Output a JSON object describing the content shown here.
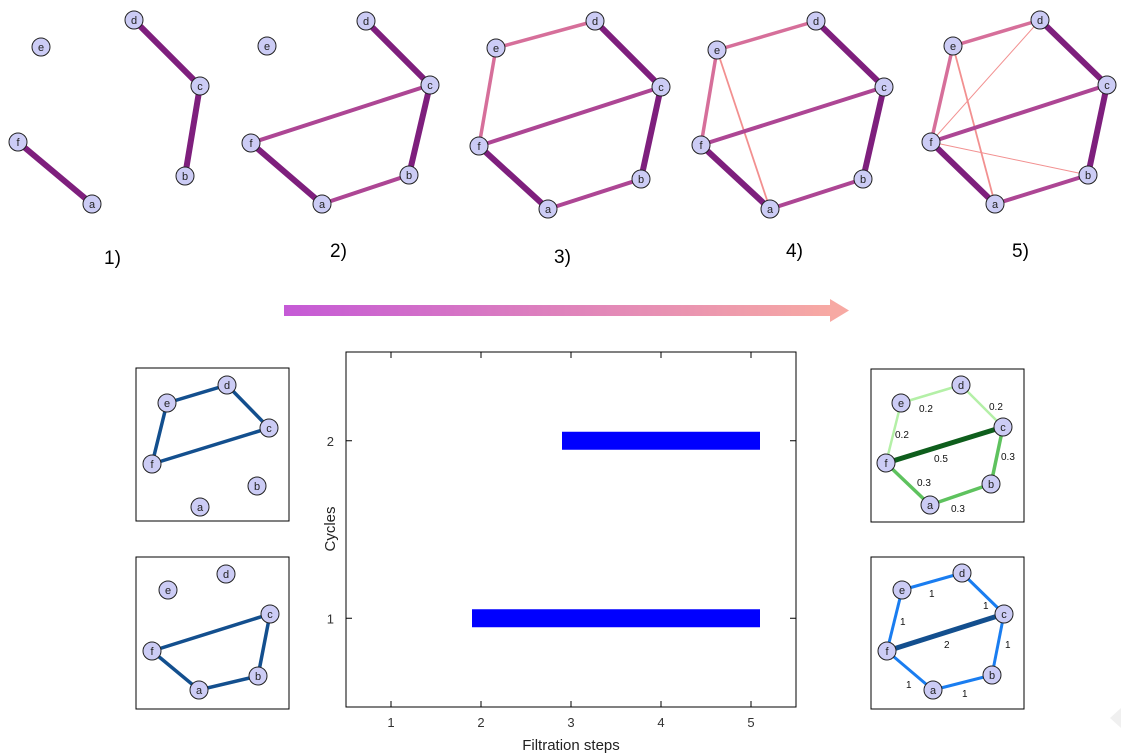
{
  "colors": {
    "node_fill": "#ccccf5",
    "edge_strong": "#7e1f7d",
    "edge_mid": "#ad4694",
    "edge_pink": "#d66f9a",
    "edge_light": "#f29090",
    "cycle_blue": "#134f8e",
    "bar_blue": "#0000ff",
    "arrow_start": "#c55ad6",
    "arrow_end": "#f7a9a3"
  },
  "steps": [
    {
      "label": "1)"
    },
    {
      "label": "2)"
    },
    {
      "label": "3)"
    },
    {
      "label": "4)"
    },
    {
      "label": "5)"
    }
  ],
  "node_labels": [
    "a",
    "b",
    "c",
    "d",
    "e",
    "f"
  ],
  "chart_data": {
    "type": "bar",
    "orientation": "horizontal",
    "xlabel": "Filtration steps",
    "ylabel": "Cycles",
    "xticks": [
      "1",
      "2",
      "3",
      "4",
      "5"
    ],
    "yticks": [
      "1",
      "2"
    ],
    "xlim": [
      0.5,
      5.5
    ],
    "ylim": [
      0.5,
      2.5
    ],
    "series": [
      {
        "cycle": 1,
        "start": 1.9,
        "end": 5.1
      },
      {
        "cycle": 2,
        "start": 2.9,
        "end": 5.1
      }
    ]
  },
  "weights_green": {
    "e_d": "0.2",
    "d_c": "0.2",
    "f_e": "0.2",
    "f_c": "0.5",
    "c_b": "0.3",
    "f_a": "0.3",
    "a_b": "0.3"
  },
  "weights_blue": {
    "e_d": "1",
    "d_c": "1",
    "f_e": "1",
    "f_c": "2",
    "c_b": "1",
    "f_a": "1",
    "a_b": "1"
  }
}
